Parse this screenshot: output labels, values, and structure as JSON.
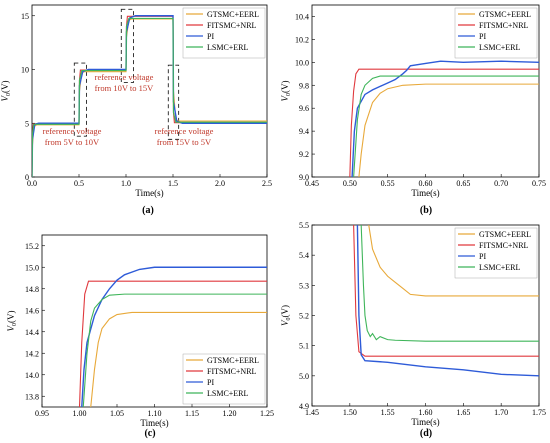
{
  "colors": {
    "GTSMC+EERL": "#e8a93a",
    "FITSMC+NRL": "#e0393e",
    "PI": "#2e5bd8",
    "LSMC+ERL": "#3fb55a"
  },
  "chart_data": [
    {
      "panel": "(a)",
      "type": "line",
      "xlabel": "Time(s)",
      "ylabel": "V_0(V)",
      "xlim": [
        0.0,
        2.5
      ],
      "ylim": [
        0,
        16
      ],
      "xticks": [
        "0.0",
        "0.5",
        "1.0",
        "1.5",
        "2.0",
        "2.5"
      ],
      "yticks": [
        "0",
        "5",
        "10",
        "15"
      ],
      "legend": "top-right",
      "series": [
        {
          "name": "GTSMC+EERL",
          "x": [
            0,
            0.005,
            0.02,
            0.05,
            0.5,
            0.505,
            0.53,
            0.56,
            1.0,
            1.005,
            1.03,
            1.06,
            1.5,
            1.505,
            1.53,
            1.56,
            2.5
          ],
          "y": [
            0,
            3,
            4.7,
            4.85,
            4.85,
            8,
            9.7,
            9.8,
            9.8,
            13,
            14.6,
            14.7,
            14.7,
            8,
            5.3,
            5.2,
            5.2
          ]
        },
        {
          "name": "FITSMC+NRL",
          "x": [
            0,
            0.005,
            0.015,
            0.5,
            0.505,
            0.515,
            1.0,
            1.005,
            1.015,
            1.5,
            1.505,
            1.515,
            2.5
          ],
          "y": [
            0,
            4,
            4.95,
            4.95,
            9,
            9.95,
            9.95,
            14,
            14.95,
            14.95,
            6,
            5.05,
            5.05
          ]
        },
        {
          "name": "PI",
          "x": [
            0,
            0.005,
            0.03,
            0.07,
            0.5,
            0.505,
            0.54,
            0.6,
            1.0,
            1.005,
            1.04,
            1.1,
            1.5,
            1.505,
            1.54,
            1.6,
            2.5
          ],
          "y": [
            0,
            3.5,
            4.9,
            5.0,
            5.0,
            8.5,
            9.8,
            10.0,
            10.0,
            13.5,
            14.8,
            15.0,
            15.0,
            7,
            5.2,
            5.0,
            5.0
          ]
        },
        {
          "name": "LSMC+ERL",
          "x": [
            0,
            0.005,
            0.02,
            0.5,
            0.505,
            0.53,
            1.0,
            1.005,
            1.03,
            1.5,
            1.505,
            1.53,
            2.5
          ],
          "y": [
            0,
            4,
            4.9,
            4.9,
            9,
            9.9,
            9.9,
            14,
            14.75,
            14.75,
            6,
            5.1,
            5.1
          ]
        }
      ],
      "annotations": [
        {
          "text_lines": [
            "reference voltage",
            "from 5V to 10V"
          ]
        },
        {
          "text_lines": [
            "reference voltage",
            "from 10V to 15V"
          ]
        },
        {
          "text_lines": [
            "reference voltage",
            "from 15V to 5V"
          ]
        }
      ]
    },
    {
      "panel": "(b)",
      "type": "line",
      "xlabel": "Time(s)",
      "ylabel": "V_0(V)",
      "xlim": [
        0.45,
        0.75
      ],
      "ylim": [
        9.0,
        10.5
      ],
      "xticks": [
        "0.45",
        "0.50",
        "0.55",
        "0.60",
        "0.65",
        "0.70",
        "0.75"
      ],
      "yticks": [
        "9.0",
        "9.2",
        "9.4",
        "9.6",
        "9.8",
        "10.0",
        "10.2",
        "10.4"
      ],
      "legend": "top-right",
      "series": [
        {
          "name": "GTSMC+EERL",
          "x": [
            0.512,
            0.515,
            0.52,
            0.53,
            0.54,
            0.55,
            0.57,
            0.6,
            0.75
          ],
          "y": [
            9.0,
            9.2,
            9.45,
            9.65,
            9.73,
            9.77,
            9.8,
            9.81,
            9.81
          ]
        },
        {
          "name": "FITSMC+NRL",
          "x": [
            0.5,
            0.502,
            0.505,
            0.508,
            0.512,
            0.75
          ],
          "y": [
            9.0,
            9.45,
            9.75,
            9.9,
            9.94,
            9.94
          ]
        },
        {
          "name": "PI",
          "x": [
            0.503,
            0.506,
            0.51,
            0.52,
            0.53,
            0.54,
            0.55,
            0.56,
            0.57,
            0.575,
            0.58,
            0.6,
            0.62,
            0.65,
            0.7,
            0.75
          ],
          "y": [
            9.0,
            9.4,
            9.6,
            9.72,
            9.76,
            9.79,
            9.82,
            9.85,
            9.9,
            9.93,
            9.97,
            9.99,
            10.01,
            10.0,
            10.01,
            10.0
          ]
        },
        {
          "name": "LSMC+ERL",
          "x": [
            0.505,
            0.51,
            0.515,
            0.52,
            0.53,
            0.54,
            0.55,
            0.57,
            0.75
          ],
          "y": [
            9.0,
            9.5,
            9.72,
            9.8,
            9.86,
            9.88,
            9.88,
            9.88,
            9.88
          ]
        }
      ]
    },
    {
      "panel": "(c)",
      "type": "line",
      "xlabel": "Time(s)",
      "ylabel": "V_0(V)",
      "xlim": [
        0.95,
        1.25
      ],
      "ylim": [
        13.7,
        15.3
      ],
      "xticks": [
        "0.95",
        "1.00",
        "1.05",
        "1.10",
        "1.15",
        "1.20",
        "1.25"
      ],
      "yticks": [
        "13.8",
        "14.0",
        "14.2",
        "14.4",
        "14.6",
        "14.8",
        "15.0",
        "15.2"
      ],
      "legend": "bottom-right",
      "series": [
        {
          "name": "GTSMC+EERL",
          "x": [
            1.015,
            1.02,
            1.025,
            1.03,
            1.04,
            1.05,
            1.07,
            1.1,
            1.25
          ],
          "y": [
            13.7,
            14.05,
            14.3,
            14.43,
            14.52,
            14.56,
            14.58,
            14.58,
            14.58
          ]
        },
        {
          "name": "FITSMC+NRL",
          "x": [
            1.0,
            1.003,
            1.007,
            1.012,
            1.25
          ],
          "y": [
            13.7,
            14.3,
            14.75,
            14.87,
            14.87
          ]
        },
        {
          "name": "PI",
          "x": [
            1.003,
            1.006,
            1.01,
            1.02,
            1.03,
            1.04,
            1.05,
            1.06,
            1.08,
            1.1,
            1.15,
            1.2,
            1.25
          ],
          "y": [
            13.7,
            14.05,
            14.3,
            14.55,
            14.7,
            14.8,
            14.88,
            14.93,
            14.98,
            15.0,
            15.0,
            15.0,
            15.0
          ]
        },
        {
          "name": "LSMC+ERL",
          "x": [
            1.005,
            1.01,
            1.015,
            1.02,
            1.03,
            1.04,
            1.06,
            1.25
          ],
          "y": [
            13.7,
            14.2,
            14.5,
            14.62,
            14.7,
            14.74,
            14.75,
            14.75
          ]
        }
      ]
    },
    {
      "panel": "(d)",
      "type": "line",
      "xlabel": "Time(s)",
      "ylabel": "V_0(V)",
      "xlim": [
        1.45,
        1.75
      ],
      "ylim": [
        4.9,
        5.5
      ],
      "xticks": [
        "1.45",
        "1.50",
        "1.55",
        "1.60",
        "1.65",
        "1.70",
        "1.75"
      ],
      "yticks": [
        "4.9",
        "5.0",
        "5.1",
        "5.2",
        "5.3",
        "5.4",
        "5.5"
      ],
      "legend": "top-right",
      "series": [
        {
          "name": "GTSMC+EERL",
          "x": [
            1.525,
            1.53,
            1.54,
            1.55,
            1.56,
            1.57,
            1.58,
            1.6,
            1.65,
            1.7,
            1.75
          ],
          "y": [
            5.5,
            5.42,
            5.36,
            5.33,
            5.31,
            5.29,
            5.27,
            5.265,
            5.265,
            5.265,
            5.265
          ]
        },
        {
          "name": "FITSMC+NRL",
          "x": [
            1.505,
            1.508,
            1.512,
            1.52,
            1.75
          ],
          "y": [
            5.5,
            5.2,
            5.08,
            5.065,
            5.065
          ]
        },
        {
          "name": "PI",
          "x": [
            1.51,
            1.512,
            1.515,
            1.52,
            1.55,
            1.6,
            1.65,
            1.7,
            1.75
          ],
          "y": [
            5.5,
            5.2,
            5.07,
            5.05,
            5.045,
            5.03,
            5.02,
            5.005,
            5.0
          ]
        },
        {
          "name": "LSMC+ERL",
          "x": [
            1.515,
            1.518,
            1.52,
            1.523,
            1.527,
            1.53,
            1.535,
            1.54,
            1.55,
            1.56,
            1.6,
            1.75
          ],
          "y": [
            5.5,
            5.3,
            5.2,
            5.15,
            5.13,
            5.14,
            5.12,
            5.13,
            5.12,
            5.118,
            5.115,
            5.115
          ]
        }
      ]
    }
  ]
}
